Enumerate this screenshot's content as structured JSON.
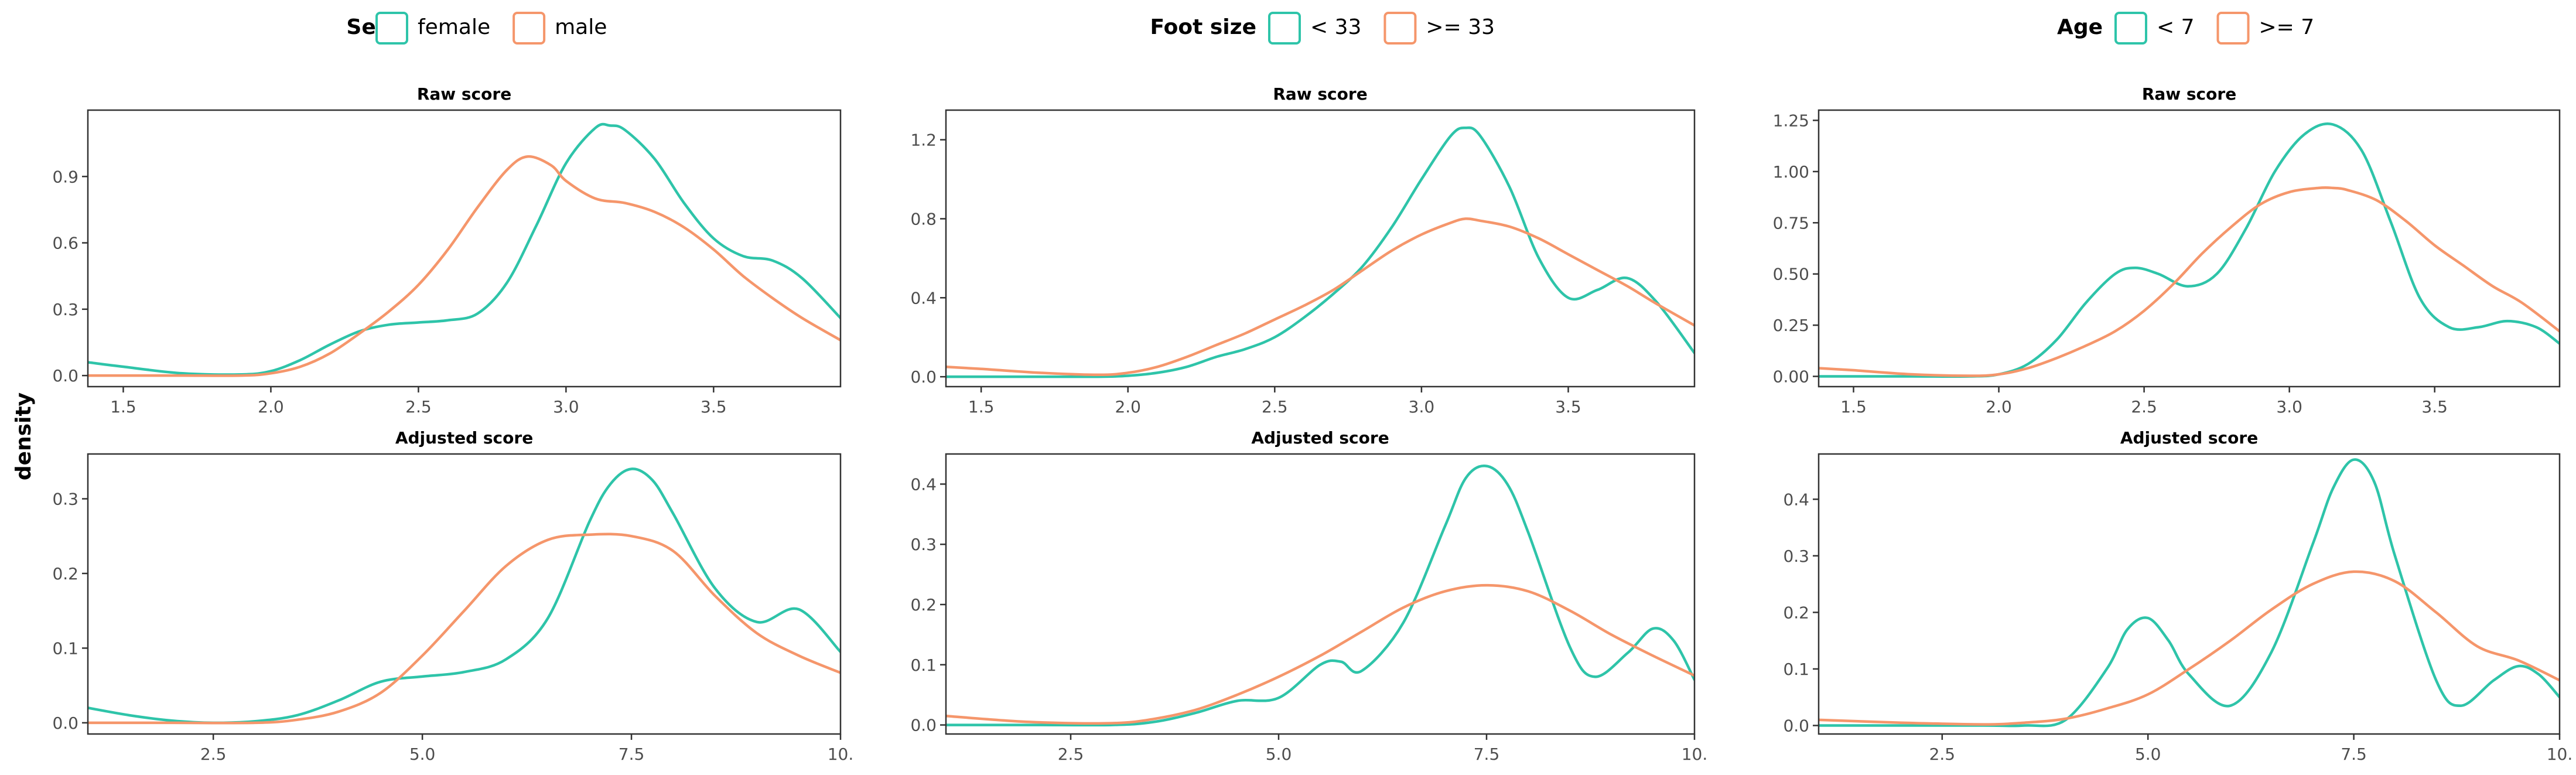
{
  "y_axis_label": "density",
  "colors": {
    "series_a": "#2ec4a9",
    "series_b": "#f5966b"
  },
  "chart_data": [
    {
      "legend": {
        "title": "Sex",
        "entries": [
          "female",
          "male"
        ]
      },
      "panels": [
        {
          "type": "line",
          "title": "Raw score",
          "xlim": [
            1.38,
            3.93
          ],
          "ylim": [
            -0.05,
            1.2
          ],
          "xticks": [
            "1.5",
            "2.0",
            "2.5",
            "3.0",
            "3.5"
          ],
          "xtick_values": [
            1.5,
            2.0,
            2.5,
            3.0,
            3.5
          ],
          "yticks": [
            "0.0",
            "0.3",
            "0.6",
            "0.9"
          ],
          "ytick_values": [
            0.0,
            0.3,
            0.6,
            0.9
          ],
          "series": [
            {
              "name": "female",
              "x": [
                1.38,
                1.5,
                1.7,
                1.9,
                2.0,
                2.1,
                2.2,
                2.3,
                2.4,
                2.5,
                2.6,
                2.7,
                2.8,
                2.9,
                3.0,
                3.1,
                3.15,
                3.2,
                3.3,
                3.4,
                3.5,
                3.6,
                3.7,
                3.8,
                3.93
              ],
              "y": [
                0.06,
                0.04,
                0.01,
                0.005,
                0.02,
                0.07,
                0.14,
                0.2,
                0.23,
                0.24,
                0.25,
                0.28,
                0.42,
                0.68,
                0.96,
                1.12,
                1.13,
                1.11,
                0.98,
                0.78,
                0.62,
                0.54,
                0.52,
                0.44,
                0.26
              ]
            },
            {
              "name": "male",
              "x": [
                1.38,
                1.5,
                1.7,
                1.9,
                2.0,
                2.1,
                2.2,
                2.3,
                2.4,
                2.5,
                2.6,
                2.7,
                2.8,
                2.87,
                2.95,
                3.0,
                3.1,
                3.2,
                3.3,
                3.4,
                3.5,
                3.6,
                3.7,
                3.8,
                3.93
              ],
              "y": [
                0.0,
                0.0,
                0.0,
                0.0,
                0.01,
                0.04,
                0.1,
                0.19,
                0.29,
                0.41,
                0.57,
                0.76,
                0.93,
                0.99,
                0.95,
                0.88,
                0.8,
                0.78,
                0.74,
                0.67,
                0.57,
                0.45,
                0.35,
                0.26,
                0.16
              ]
            }
          ]
        },
        {
          "type": "line",
          "title": "Adjusted score",
          "xlim": [
            1.0,
            10.0
          ],
          "ylim": [
            -0.015,
            0.36
          ],
          "xticks": [
            "2.5",
            "5.0",
            "7.5",
            "10."
          ],
          "xtick_values": [
            2.5,
            5.0,
            7.5,
            10.0
          ],
          "yticks": [
            "0.0",
            "0.1",
            "0.2",
            "0.3"
          ],
          "ytick_values": [
            0.0,
            0.1,
            0.2,
            0.3
          ],
          "series": [
            {
              "name": "female",
              "x": [
                1.0,
                1.5,
                2.0,
                2.5,
                3.0,
                3.5,
                4.0,
                4.5,
                5.0,
                5.5,
                6.0,
                6.5,
                7.0,
                7.25,
                7.5,
                7.75,
                8.0,
                8.5,
                9.0,
                9.5,
                10.0
              ],
              "y": [
                0.02,
                0.01,
                0.003,
                0.0,
                0.002,
                0.01,
                0.03,
                0.055,
                0.062,
                0.068,
                0.085,
                0.14,
                0.27,
                0.32,
                0.34,
                0.325,
                0.28,
                0.18,
                0.135,
                0.152,
                0.095
              ]
            },
            {
              "name": "male",
              "x": [
                1.0,
                2.0,
                3.0,
                3.5,
                4.0,
                4.5,
                5.0,
                5.5,
                6.0,
                6.5,
                7.0,
                7.5,
                8.0,
                8.5,
                9.0,
                9.5,
                10.0
              ],
              "y": [
                0.0,
                0.0,
                0.0,
                0.004,
                0.015,
                0.04,
                0.09,
                0.15,
                0.21,
                0.245,
                0.252,
                0.25,
                0.23,
                0.17,
                0.12,
                0.09,
                0.067
              ]
            }
          ]
        }
      ]
    },
    {
      "legend": {
        "title": "Foot size",
        "entries": [
          "< 33",
          ">= 33"
        ]
      },
      "panels": [
        {
          "type": "line",
          "title": "Raw score",
          "xlim": [
            1.38,
            3.93
          ],
          "ylim": [
            -0.05,
            1.35
          ],
          "xticks": [
            "1.5",
            "2.0",
            "2.5",
            "3.0",
            "3.5"
          ],
          "xtick_values": [
            1.5,
            2.0,
            2.5,
            3.0,
            3.5
          ],
          "yticks": [
            "0.0",
            "0.4",
            "0.8",
            "1.2"
          ],
          "ytick_values": [
            0.0,
            0.4,
            0.8,
            1.2
          ],
          "series": [
            {
              "name": "< 33",
              "x": [
                1.38,
                1.5,
                1.7,
                1.9,
                2.0,
                2.1,
                2.2,
                2.3,
                2.4,
                2.5,
                2.6,
                2.7,
                2.8,
                2.9,
                3.0,
                3.1,
                3.15,
                3.2,
                3.3,
                3.4,
                3.5,
                3.6,
                3.7,
                3.8,
                3.93
              ],
              "y": [
                0.0,
                0.0,
                0.0,
                0.0,
                0.005,
                0.02,
                0.05,
                0.1,
                0.14,
                0.2,
                0.3,
                0.42,
                0.56,
                0.76,
                1.0,
                1.22,
                1.26,
                1.22,
                0.96,
                0.6,
                0.4,
                0.44,
                0.5,
                0.38,
                0.12
              ]
            },
            {
              "name": ">= 33",
              "x": [
                1.38,
                1.5,
                1.7,
                1.9,
                2.0,
                2.1,
                2.2,
                2.3,
                2.4,
                2.5,
                2.6,
                2.7,
                2.8,
                2.9,
                3.0,
                3.1,
                3.15,
                3.2,
                3.3,
                3.4,
                3.5,
                3.6,
                3.7,
                3.8,
                3.93
              ],
              "y": [
                0.05,
                0.04,
                0.02,
                0.01,
                0.02,
                0.05,
                0.1,
                0.16,
                0.22,
                0.29,
                0.36,
                0.44,
                0.54,
                0.64,
                0.72,
                0.78,
                0.8,
                0.79,
                0.76,
                0.7,
                0.62,
                0.54,
                0.46,
                0.37,
                0.26
              ]
            }
          ]
        },
        {
          "type": "line",
          "title": "Adjusted score",
          "xlim": [
            1.0,
            10.0
          ],
          "ylim": [
            -0.015,
            0.45
          ],
          "xticks": [
            "2.5",
            "5.0",
            "7.5",
            "10."
          ],
          "xtick_values": [
            2.5,
            5.0,
            7.5,
            10.0
          ],
          "yticks": [
            "0.0",
            "0.1",
            "0.2",
            "0.3",
            "0.4"
          ],
          "ytick_values": [
            0.0,
            0.1,
            0.2,
            0.3,
            0.4
          ],
          "series": [
            {
              "name": "< 33",
              "x": [
                1.0,
                2.0,
                3.0,
                3.5,
                4.0,
                4.5,
                5.0,
                5.5,
                5.75,
                6.0,
                6.5,
                7.0,
                7.25,
                7.5,
                7.75,
                8.0,
                8.5,
                8.8,
                9.2,
                9.5,
                9.75,
                10.0
              ],
              "y": [
                0.0,
                0.0,
                0.0,
                0.005,
                0.02,
                0.04,
                0.045,
                0.1,
                0.105,
                0.09,
                0.17,
                0.33,
                0.41,
                0.43,
                0.4,
                0.32,
                0.13,
                0.08,
                0.12,
                0.16,
                0.14,
                0.075
              ]
            },
            {
              "name": ">= 33",
              "x": [
                1.0,
                2.0,
                3.0,
                3.5,
                4.0,
                4.5,
                5.0,
                5.5,
                6.0,
                6.5,
                7.0,
                7.5,
                8.0,
                8.5,
                9.0,
                9.5,
                10.0
              ],
              "y": [
                0.015,
                0.005,
                0.003,
                0.01,
                0.025,
                0.05,
                0.08,
                0.115,
                0.155,
                0.195,
                0.222,
                0.232,
                0.222,
                0.19,
                0.15,
                0.115,
                0.082
              ]
            }
          ]
        }
      ]
    },
    {
      "legend": {
        "title": "Age",
        "entries": [
          "< 7",
          ">= 7"
        ]
      },
      "panels": [
        {
          "type": "line",
          "title": "Raw score",
          "xlim": [
            1.38,
            3.93
          ],
          "ylim": [
            -0.05,
            1.3
          ],
          "xticks": [
            "1.5",
            "2.0",
            "2.5",
            "3.0",
            "3.5"
          ],
          "xtick_values": [
            1.5,
            2.0,
            2.5,
            3.0,
            3.5
          ],
          "yticks": [
            "0.00",
            "0.25",
            "0.50",
            "0.75",
            "1.00",
            "1.25"
          ],
          "ytick_values": [
            0.0,
            0.25,
            0.5,
            0.75,
            1.0,
            1.25
          ],
          "series": [
            {
              "name": "< 7",
              "x": [
                1.38,
                1.5,
                1.7,
                1.9,
                2.0,
                2.1,
                2.2,
                2.3,
                2.4,
                2.47,
                2.55,
                2.65,
                2.75,
                2.85,
                2.95,
                3.05,
                3.15,
                3.25,
                3.35,
                3.45,
                3.55,
                3.65,
                3.75,
                3.85,
                3.93
              ],
              "y": [
                0.0,
                0.0,
                0.0,
                0.0,
                0.01,
                0.06,
                0.18,
                0.36,
                0.5,
                0.53,
                0.5,
                0.44,
                0.5,
                0.72,
                1.0,
                1.18,
                1.23,
                1.1,
                0.75,
                0.38,
                0.24,
                0.24,
                0.27,
                0.24,
                0.16
              ]
            },
            {
              "name": ">= 7",
              "x": [
                1.38,
                1.5,
                1.7,
                1.9,
                2.0,
                2.1,
                2.2,
                2.3,
                2.4,
                2.5,
                2.6,
                2.7,
                2.8,
                2.9,
                3.0,
                3.1,
                3.15,
                3.2,
                3.3,
                3.4,
                3.5,
                3.6,
                3.7,
                3.8,
                3.93
              ],
              "y": [
                0.04,
                0.03,
                0.01,
                0.003,
                0.01,
                0.04,
                0.09,
                0.15,
                0.22,
                0.32,
                0.45,
                0.6,
                0.73,
                0.84,
                0.9,
                0.92,
                0.92,
                0.91,
                0.86,
                0.76,
                0.64,
                0.54,
                0.44,
                0.36,
                0.22
              ]
            }
          ]
        },
        {
          "type": "line",
          "title": "Adjusted score",
          "xlim": [
            1.0,
            10.0
          ],
          "ylim": [
            -0.015,
            0.48
          ],
          "xticks": [
            "2.5",
            "5.0",
            "7.5",
            "10."
          ],
          "xtick_values": [
            2.5,
            5.0,
            7.5,
            10.0
          ],
          "yticks": [
            "0.0",
            "0.1",
            "0.2",
            "0.3",
            "0.4"
          ],
          "ytick_values": [
            0.0,
            0.1,
            0.2,
            0.3,
            0.4
          ],
          "series": [
            {
              "name": "< 7",
              "x": [
                1.0,
                2.0,
                3.0,
                3.5,
                4.0,
                4.5,
                4.75,
                5.0,
                5.25,
                5.5,
                6.0,
                6.5,
                7.0,
                7.25,
                7.5,
                7.75,
                8.0,
                8.5,
                8.8,
                9.2,
                9.5,
                9.75,
                10.0
              ],
              "y": [
                0.0,
                0.0,
                0.0,
                0.0,
                0.01,
                0.1,
                0.17,
                0.19,
                0.15,
                0.09,
                0.035,
                0.13,
                0.32,
                0.42,
                0.47,
                0.43,
                0.3,
                0.08,
                0.035,
                0.08,
                0.105,
                0.09,
                0.05
              ]
            },
            {
              "name": ">= 7",
              "x": [
                1.0,
                2.0,
                3.0,
                3.5,
                4.0,
                4.5,
                5.0,
                5.5,
                6.0,
                6.5,
                7.0,
                7.5,
                8.0,
                8.5,
                9.0,
                9.5,
                10.0
              ],
              "y": [
                0.01,
                0.005,
                0.002,
                0.005,
                0.012,
                0.03,
                0.055,
                0.1,
                0.15,
                0.205,
                0.25,
                0.272,
                0.255,
                0.2,
                0.14,
                0.115,
                0.08
              ]
            }
          ]
        }
      ]
    }
  ]
}
